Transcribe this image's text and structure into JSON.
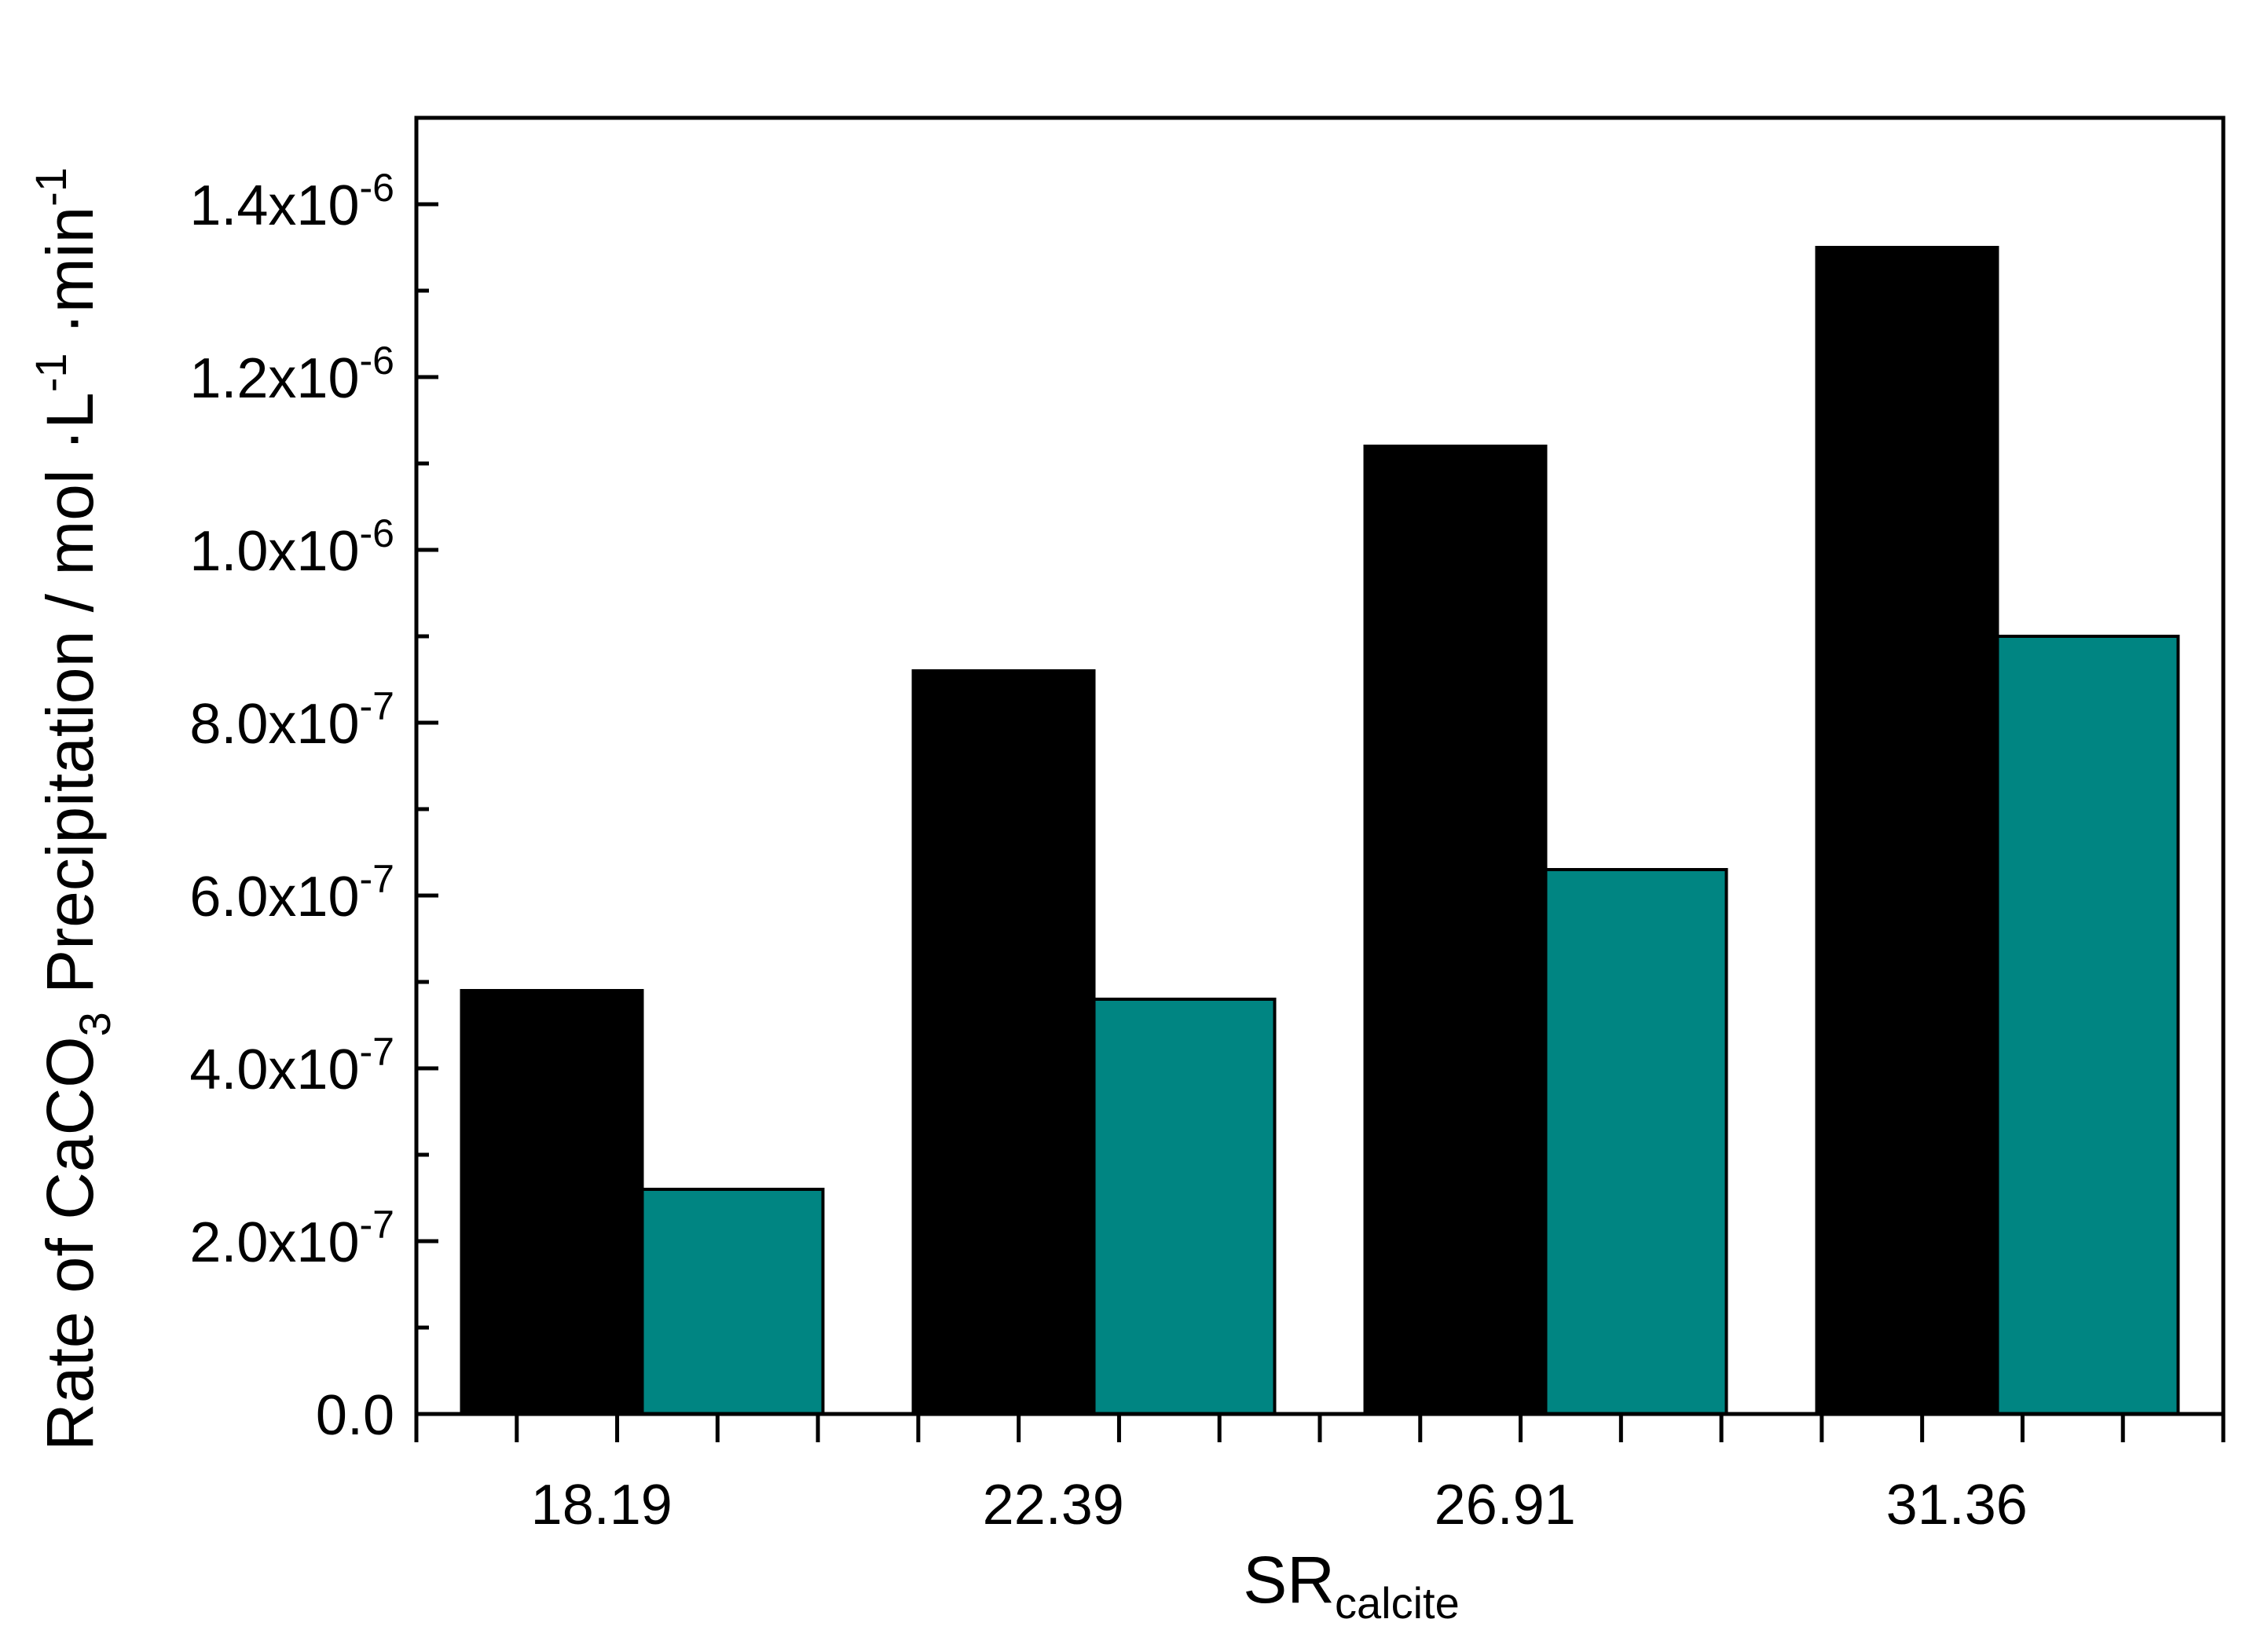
{
  "chart_data": {
    "type": "bar",
    "title": "",
    "xlabel": "SR",
    "xlabel_subscript": "calcite",
    "ylabel": {
      "prefix": "Rate of CaCO",
      "sub": "3",
      "middle": " Precipitation / mol ·L",
      "exp1": "-1",
      "mid2": " ·min",
      "exp2": "-1"
    },
    "categories": [
      "18.19",
      "22.39",
      "26.91",
      "31.36"
    ],
    "series": [
      {
        "values": [
          4.9e-07,
          8.6e-07,
          1.12e-06,
          1.35e-06
        ],
        "color": "#000000"
      },
      {
        "values": [
          2.6e-07,
          4.8e-07,
          6.3e-07,
          9e-07
        ],
        "color": "#008582"
      }
    ],
    "ylim": [
      0,
      1.5e-06
    ],
    "yticks": [
      {
        "value": 0,
        "mantissa": "0.0",
        "exponent": ""
      },
      {
        "value": 2e-07,
        "mantissa": "2.0x10",
        "exponent": "-7"
      },
      {
        "value": 4e-07,
        "mantissa": "4.0x10",
        "exponent": "-7"
      },
      {
        "value": 6e-07,
        "mantissa": "6.0x10",
        "exponent": "-7"
      },
      {
        "value": 8e-07,
        "mantissa": "8.0x10",
        "exponent": "-7"
      },
      {
        "value": 1e-06,
        "mantissa": "1.0x10",
        "exponent": "-6"
      },
      {
        "value": 1.2e-06,
        "mantissa": "1.2x10",
        "exponent": "-6"
      },
      {
        "value": 1.4e-06,
        "mantissa": "1.4x10",
        "exponent": "-6"
      }
    ],
    "grid": false,
    "legend": "none"
  }
}
